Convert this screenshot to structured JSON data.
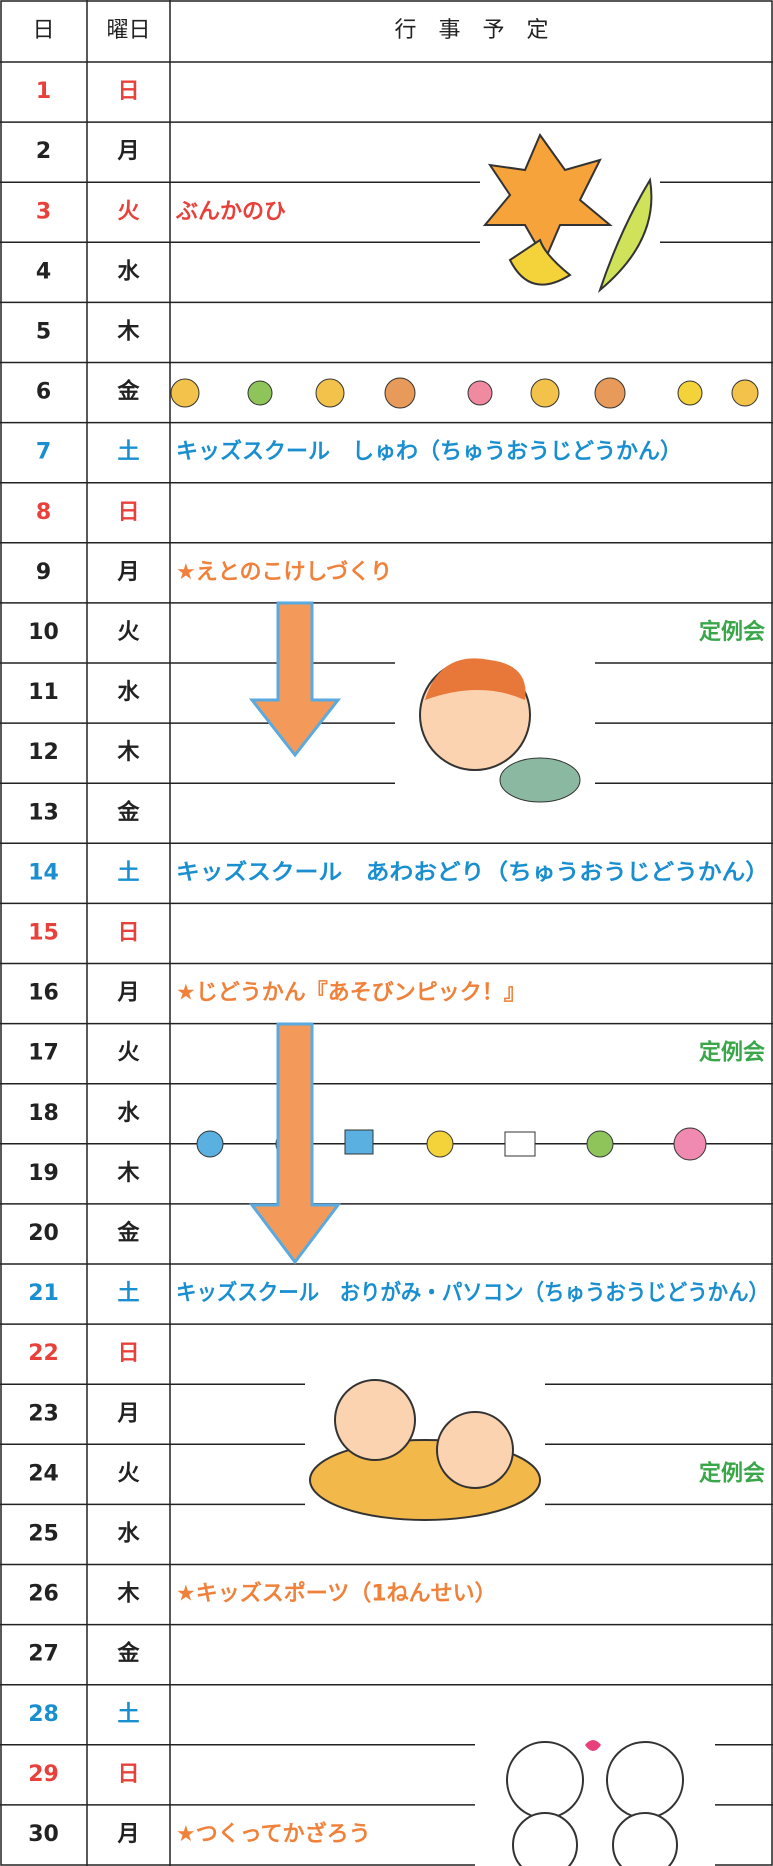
{
  "header": [
    "日",
    "曜日",
    "行　事　予　定"
  ],
  "rows": [
    {
      "day": 1,
      "weekday": "日",
      "color": "#e8403a"
    },
    {
      "day": 2,
      "weekday": "月"
    },
    {
      "day": 3,
      "weekday": "火",
      "color": "#e8403a",
      "event": "ぶんかのひ",
      "event_color": "#e8403a"
    },
    {
      "day": 4,
      "weekday": "水"
    },
    {
      "day": 5,
      "weekday": "木"
    },
    {
      "day": 6,
      "weekday": "金"
    },
    {
      "day": 7,
      "weekday": "土",
      "color": "#1a8fd0",
      "event": "キッズスクール　しゅわ（ちゅうおうじどうかん）",
      "event_color": "#1a8fd0"
    },
    {
      "day": 8,
      "weekday": "日",
      "color": "#e8403a"
    },
    {
      "day": 9,
      "weekday": "月",
      "event": "★えとのこけしづくり",
      "event_color": "#f0813a"
    },
    {
      "day": 10,
      "weekday": "火",
      "note": "定例会"
    },
    {
      "day": 11,
      "weekday": "水"
    },
    {
      "day": 12,
      "weekday": "木"
    },
    {
      "day": 13,
      "weekday": "金"
    },
    {
      "day": 14,
      "weekday": "土",
      "color": "#1a8fd0",
      "event": "キッズスクール　あわおどり（ちゅうおうじどうかん）",
      "event_color": "#1a8fd0"
    },
    {
      "day": 15,
      "weekday": "日",
      "color": "#e8403a"
    },
    {
      "day": 16,
      "weekday": "月",
      "event": "★じどうかん『あそびンピック！』",
      "event_color": "#f0813a"
    },
    {
      "day": 17,
      "weekday": "火",
      "note": "定例会"
    },
    {
      "day": 18,
      "weekday": "水"
    },
    {
      "day": 19,
      "weekday": "木"
    },
    {
      "day": 20,
      "weekday": "金"
    },
    {
      "day": 21,
      "weekday": "土",
      "color": "#1a8fd0",
      "event": "キッズスクール　おりがみ・パソコン（ちゅうおうじどうかん）",
      "event_color": "#1a8fd0"
    },
    {
      "day": 22,
      "weekday": "日",
      "color": "#e8403a"
    },
    {
      "day": 23,
      "weekday": "月"
    },
    {
      "day": 24,
      "weekday": "火",
      "note": "定例会"
    },
    {
      "day": 25,
      "weekday": "水"
    },
    {
      "day": 26,
      "weekday": "木",
      "event": "★キッズスポーツ（1ねんせい）",
      "event_color": "#f0813a"
    },
    {
      "day": 27,
      "weekday": "金"
    },
    {
      "day": 28,
      "weekday": "土",
      "color": "#1a8fd0"
    },
    {
      "day": 29,
      "weekday": "日",
      "color": "#e8403a"
    },
    {
      "day": 30,
      "weekday": "月",
      "event": "★つくってかざろう",
      "event_color": "#f0813a"
    }
  ],
  "note_color": "#3aa64a"
}
